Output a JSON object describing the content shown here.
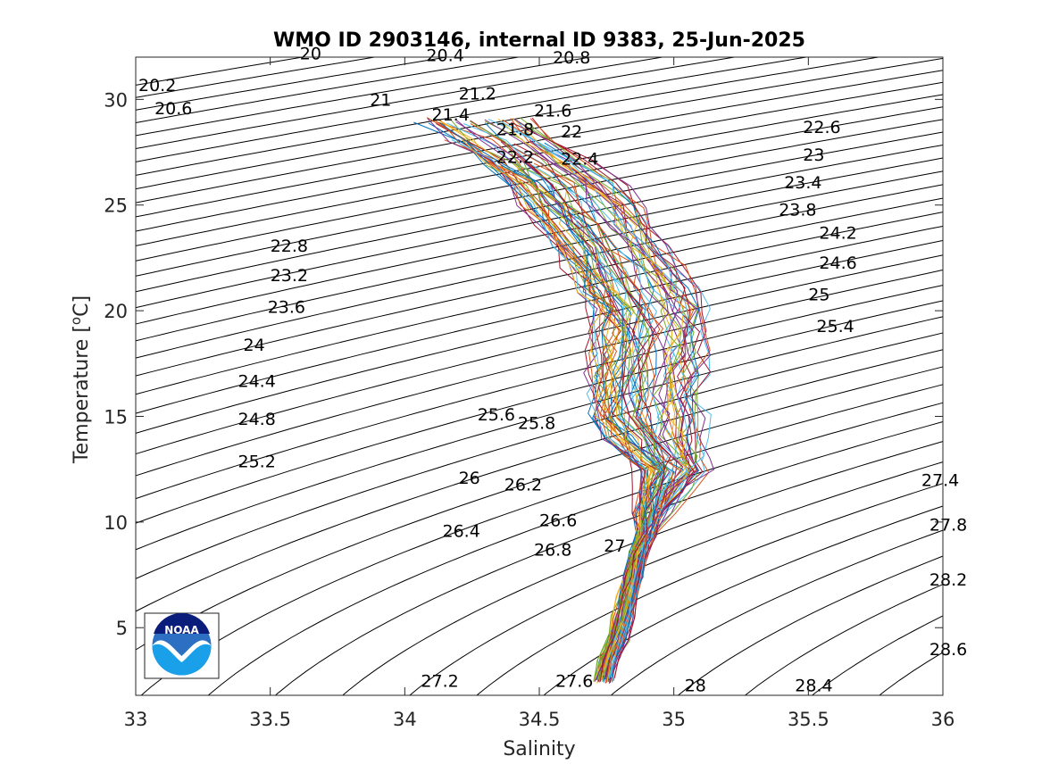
{
  "chart_data": {
    "type": "line",
    "title": "WMO ID 2903146, internal ID 9383, 25-Jun-2025",
    "xlabel": "Salinity",
    "ylabel": "Temperature [",
    "ylabel_unit": "C]",
    "ylabel_sup": "o",
    "xlim": [
      33,
      36
    ],
    "ylim": [
      1.8,
      32
    ],
    "xticks": [
      "33",
      "33.5",
      "34",
      "34.5",
      "35",
      "35.5",
      "36"
    ],
    "yticks": [
      "5",
      "10",
      "15",
      "20",
      "25",
      "30"
    ],
    "xtick_values": [
      33,
      33.5,
      34,
      34.5,
      35,
      35.5,
      36
    ],
    "ytick_values": [
      5,
      10,
      15,
      20,
      25,
      30
    ],
    "grid": false,
    "density_contours": {
      "min": 20.0,
      "max": 28.8,
      "step": 0.2,
      "color": "#000000",
      "labels": [
        {
          "text": "20",
          "s": 33.61,
          "t": 31.9
        },
        {
          "text": "20.2",
          "s": 33.01,
          "t": 30.4
        },
        {
          "text": "20.4",
          "s": 34.08,
          "t": 31.8
        },
        {
          "text": "20.6",
          "s": 33.07,
          "t": 29.3
        },
        {
          "text": "20.8",
          "s": 34.55,
          "t": 31.7
        },
        {
          "text": "21",
          "s": 33.87,
          "t": 29.7
        },
        {
          "text": "21.2",
          "s": 34.2,
          "t": 30.0
        },
        {
          "text": "21.4",
          "s": 34.1,
          "t": 29.0
        },
        {
          "text": "21.6",
          "s": 34.48,
          "t": 29.2
        },
        {
          "text": "21.8",
          "s": 34.34,
          "t": 28.3
        },
        {
          "text": "22",
          "s": 34.58,
          "t": 28.2
        },
        {
          "text": "22.2",
          "s": 34.34,
          "t": 27.0
        },
        {
          "text": "22.4",
          "s": 34.58,
          "t": 26.9
        },
        {
          "text": "22.6",
          "s": 35.48,
          "t": 28.4
        },
        {
          "text": "22.8",
          "s": 33.5,
          "t": 22.8
        },
        {
          "text": "23",
          "s": 35.48,
          "t": 27.1
        },
        {
          "text": "23.2",
          "s": 33.5,
          "t": 21.4
        },
        {
          "text": "23.4",
          "s": 35.41,
          "t": 25.8
        },
        {
          "text": "23.6",
          "s": 33.49,
          "t": 19.9
        },
        {
          "text": "23.8",
          "s": 35.39,
          "t": 24.5
        },
        {
          "text": "24",
          "s": 33.4,
          "t": 18.1
        },
        {
          "text": "24.2",
          "s": 35.54,
          "t": 23.4
        },
        {
          "text": "24.4",
          "s": 33.38,
          "t": 16.4
        },
        {
          "text": "24.6",
          "s": 35.54,
          "t": 22.0
        },
        {
          "text": "24.8",
          "s": 33.38,
          "t": 14.6
        },
        {
          "text": "25",
          "s": 35.5,
          "t": 20.5
        },
        {
          "text": "25.2",
          "s": 33.38,
          "t": 12.6
        },
        {
          "text": "25.4",
          "s": 35.53,
          "t": 19.0
        },
        {
          "text": "25.6",
          "s": 34.27,
          "t": 14.8
        },
        {
          "text": "25.8",
          "s": 34.42,
          "t": 14.4
        },
        {
          "text": "26",
          "s": 34.2,
          "t": 11.8
        },
        {
          "text": "26.2",
          "s": 34.37,
          "t": 11.5
        },
        {
          "text": "26.4",
          "s": 34.14,
          "t": 9.3
        },
        {
          "text": "26.6",
          "s": 34.5,
          "t": 9.8
        },
        {
          "text": "26.8",
          "s": 34.48,
          "t": 8.4
        },
        {
          "text": "27",
          "s": 34.74,
          "t": 8.6
        },
        {
          "text": "27.2",
          "s": 34.06,
          "t": 2.2
        },
        {
          "text": "27.4",
          "s": 35.92,
          "t": 11.7
        },
        {
          "text": "27.6",
          "s": 34.56,
          "t": 2.2
        },
        {
          "text": "27.8",
          "s": 35.95,
          "t": 9.6
        },
        {
          "text": "28",
          "s": 35.04,
          "t": 2.0
        },
        {
          "text": "28.2",
          "s": 35.95,
          "t": 7.0
        },
        {
          "text": "28.4",
          "s": 35.45,
          "t": 2.0
        },
        {
          "text": "28.6",
          "s": 35.95,
          "t": 3.7
        }
      ]
    },
    "series_colors": [
      "#0072BD",
      "#D95319",
      "#EDB120",
      "#7E2F8E",
      "#77AC30",
      "#4DBEEE",
      "#A2142F"
    ],
    "profile_count": 70,
    "profile_template": {
      "t": [
        2.5,
        3.5,
        4.5,
        5.5,
        6.5,
        7.5,
        8.5,
        9.5,
        10.5,
        11.5,
        12.5,
        13.0,
        14.0,
        15.0,
        16.0,
        17.0,
        18.0,
        19.0,
        20.0,
        21.0,
        22.0,
        23.0,
        24.0,
        25.0,
        26.0,
        27.0,
        28.0,
        29.0
      ],
      "s": [
        34.74,
        34.76,
        34.79,
        34.81,
        34.83,
        34.85,
        34.87,
        34.9,
        34.92,
        34.96,
        35.0,
        34.98,
        34.93,
        34.9,
        34.89,
        34.9,
        34.91,
        34.92,
        34.91,
        34.87,
        34.82,
        34.77,
        34.72,
        34.66,
        34.6,
        34.5,
        34.38,
        34.25
      ]
    }
  },
  "logo": {
    "text": "NOAA"
  }
}
